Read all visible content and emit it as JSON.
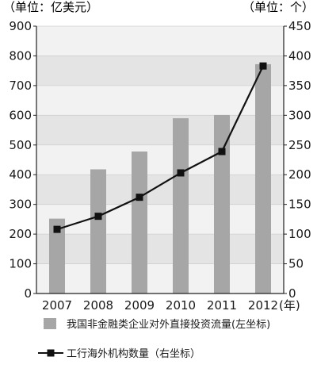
{
  "chart_data": {
    "type": "bar",
    "title": "",
    "left_unit": "（单位：亿美元）",
    "right_unit": "（单位：个）",
    "x_suffix": "(年)",
    "categories": [
      "2007",
      "2008",
      "2009",
      "2010",
      "2011",
      "2012"
    ],
    "ylim_left": [
      0,
      900
    ],
    "yticks_left": [
      0,
      100,
      200,
      300,
      400,
      500,
      600,
      700,
      800,
      900
    ],
    "ylim_right": [
      0,
      450
    ],
    "yticks_right": [
      0,
      50,
      100,
      150,
      200,
      250,
      300,
      350,
      400,
      450
    ],
    "grid": "horizontal bands",
    "series": [
      {
        "name": "我国非金融类企业对外直接投资流量(左坐标)",
        "type": "bar",
        "axis": "left",
        "color": "#a6a6a6",
        "values": [
          252,
          418,
          478,
          590,
          601,
          772
        ]
      },
      {
        "name": "工行海外机构数量（右坐标）",
        "type": "line",
        "axis": "right",
        "color": "#111111",
        "marker": "square",
        "values": [
          108,
          130,
          162,
          203,
          239,
          383
        ]
      }
    ],
    "legend_position": "bottom"
  }
}
